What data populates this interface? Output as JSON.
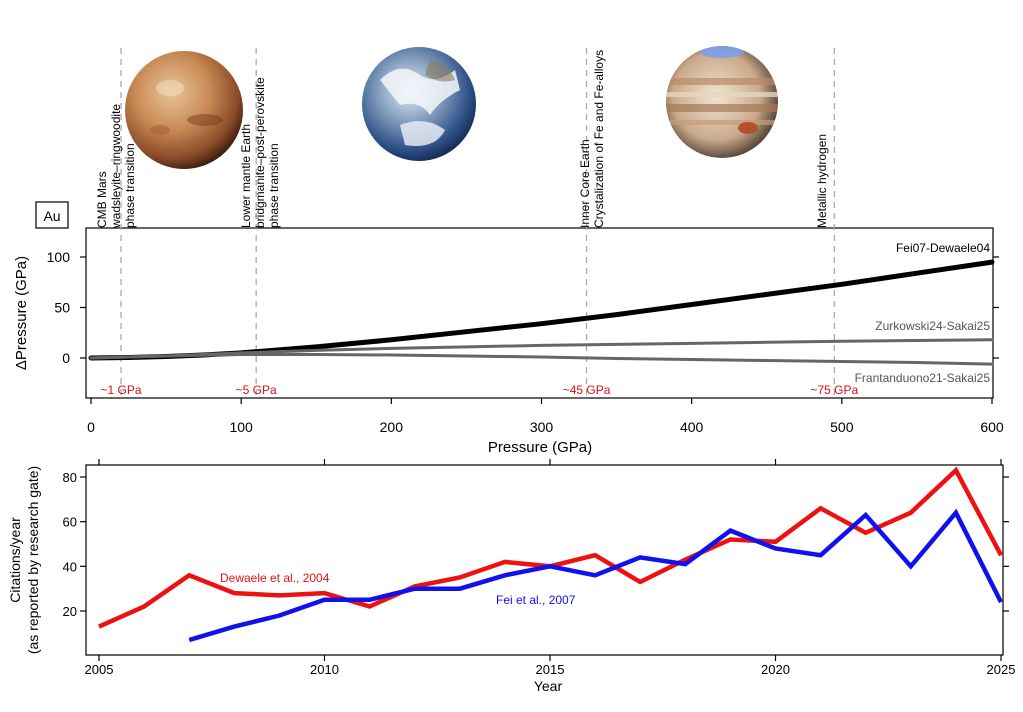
{
  "figure": {
    "images": [
      {
        "name": "Mars",
        "pressure": 16
      },
      {
        "name": "Earth",
        "pressure": 218
      },
      {
        "name": "Jupiter",
        "pressure": 417
      }
    ]
  },
  "chart_data": [
    {
      "type": "line",
      "panel_label": "Au",
      "xlabel": "Pressure (GPa)",
      "ylabel": "ΔPressure (GPa)",
      "xlim": [
        -10,
        600
      ],
      "ylim": [
        -40,
        130
      ],
      "xticks": [
        0,
        100,
        200,
        300,
        400,
        500,
        600
      ],
      "yticks": [
        0,
        50,
        100
      ],
      "series": [
        {
          "name": "Fei07-Dewaele04",
          "color": "#000000",
          "x": [
            0,
            25,
            50,
            75,
            100,
            150,
            200,
            250,
            300,
            350,
            400,
            450,
            500,
            550,
            600
          ],
          "y": [
            0,
            0.5,
            1.5,
            3,
            5,
            11,
            18,
            26,
            34,
            43,
            53,
            63,
            73,
            84,
            95
          ]
        },
        {
          "name": "Zurkowski24-Sakai25",
          "color": "#666666",
          "x": [
            0,
            50,
            100,
            150,
            200,
            250,
            300,
            350,
            400,
            450,
            500,
            550,
            600
          ],
          "y": [
            0,
            2,
            5,
            7.5,
            9.5,
            11,
            12.5,
            13.5,
            14.5,
            15.5,
            16.5,
            17.3,
            18
          ]
        },
        {
          "name": "Frantanduono21-Sakai25",
          "color": "#666666",
          "x": [
            0,
            50,
            100,
            150,
            200,
            250,
            300,
            350,
            400,
            450,
            500,
            550,
            600
          ],
          "y": [
            0,
            2,
            3.5,
            3.5,
            3,
            2,
            1,
            -0.5,
            -1.5,
            -2.5,
            -3.5,
            -4.5,
            -6
          ]
        }
      ],
      "vlines": [
        {
          "x": 20,
          "label_lines": [
            "CMB Mars",
            "wadsleyite–ringwoodite",
            "phase transition"
          ],
          "pressure_label": "~1 GPa"
        },
        {
          "x": 110,
          "label_lines": [
            "Lower mantle Earth",
            "bridgmanite–post-perovskite",
            "phase transition"
          ],
          "pressure_label": "~5 GPa"
        },
        {
          "x": 330,
          "label_lines": [
            "Inner Core Earth",
            "Crystalization of Fe and Fe-alloys"
          ],
          "pressure_label": "~45 GPa"
        },
        {
          "x": 495,
          "label_lines": [
            "Metallic hydrogen"
          ],
          "pressure_label": "~75 GPa"
        }
      ]
    },
    {
      "type": "line",
      "xlabel": "Year",
      "ylabel_lines": [
        "Citations/year",
        "(as reported by research gate)"
      ],
      "xlim": [
        2005,
        2025
      ],
      "ylim": [
        5,
        85
      ],
      "xticks": [
        2005,
        2010,
        2015,
        2020,
        2025
      ],
      "yticks": [
        20,
        40,
        60,
        80
      ],
      "series": [
        {
          "name": "Dewaele et al., 2004",
          "color": "#ee1111",
          "x": [
            2005,
            2006,
            2007,
            2008,
            2009,
            2010,
            2011,
            2012,
            2013,
            2014,
            2015,
            2016,
            2017,
            2018,
            2019,
            2020,
            2021,
            2022,
            2023,
            2024,
            2025
          ],
          "y": [
            13,
            22,
            36,
            28,
            27,
            28,
            22,
            31,
            35,
            42,
            40,
            45,
            33,
            43,
            52,
            51,
            66,
            55,
            64,
            83,
            45
          ]
        },
        {
          "name": "Fei et al., 2007",
          "color": "#1111ee",
          "x": [
            2007,
            2008,
            2009,
            2010,
            2011,
            2012,
            2013,
            2014,
            2015,
            2016,
            2017,
            2018,
            2019,
            2020,
            2021,
            2022,
            2023,
            2024,
            2025
          ],
          "y": [
            7,
            13,
            18,
            25,
            25,
            30,
            30,
            36,
            40,
            36,
            44,
            41,
            56,
            48,
            45,
            63,
            40,
            64,
            24
          ]
        }
      ]
    }
  ]
}
